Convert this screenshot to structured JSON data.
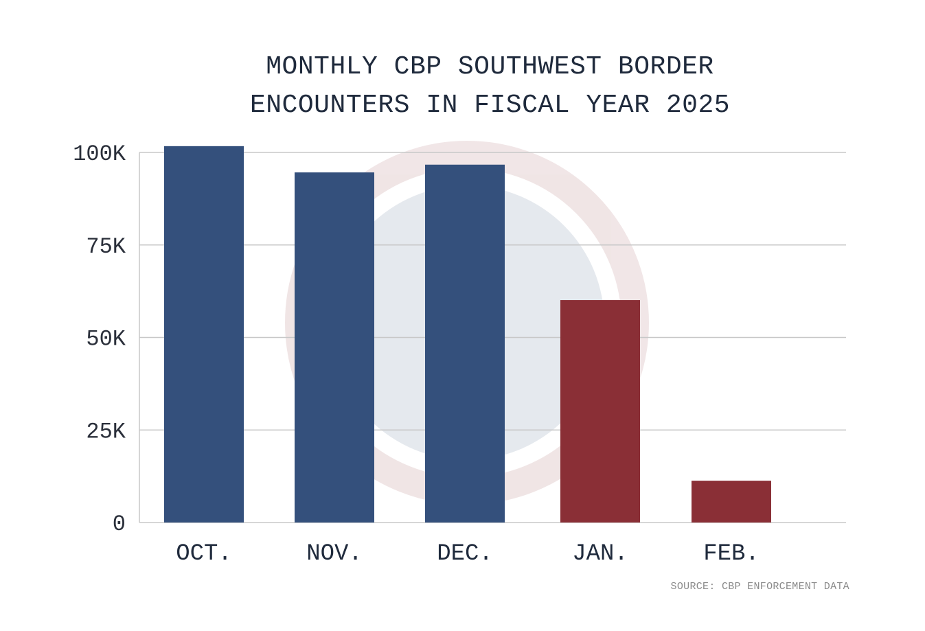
{
  "chart_data": {
    "type": "bar",
    "title": [
      "MONTHLY CBP SOUTHWEST BORDER",
      "ENCOUNTERS IN FISCAL YEAR 2025"
    ],
    "categories": [
      "OCT.",
      "NOV.",
      "DEC.",
      "JAN.",
      "FEB."
    ],
    "values": [
      101700,
      94600,
      96700,
      60100,
      11300
    ],
    "bar_colors": [
      "#34507c",
      "#34507c",
      "#34507c",
      "#8a2f36",
      "#8a2f36"
    ],
    "yticks": [
      0,
      25000,
      50000,
      75000,
      100000
    ],
    "ytick_labels": [
      "0",
      "25K",
      "50K",
      "75K",
      "100K"
    ],
    "ylim": [
      0,
      100000
    ],
    "xlabel": "",
    "ylabel": "",
    "grid": true,
    "legend": "none",
    "source": "SOURCE: CBP ENFORCEMENT DATA"
  }
}
